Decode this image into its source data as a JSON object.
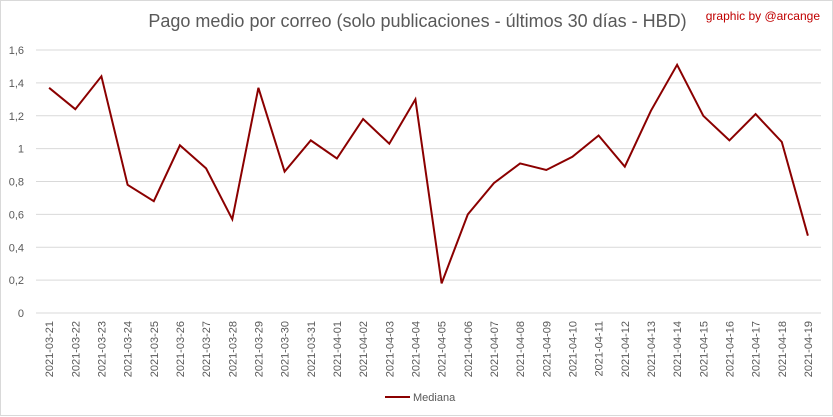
{
  "title": "Pago medio por correo (solo publicaciones - últimos 30 días - HBD)",
  "credit": "graphic by @arcange",
  "colors": {
    "series": "#8b0000",
    "grid": "#d9d9d9",
    "axis_text": "#595959",
    "credit": "#c00000"
  },
  "chart_data": {
    "type": "line",
    "title": "Pago medio por correo (solo publicaciones - últimos 30 días - HBD)",
    "xlabel": "",
    "ylabel": "",
    "ylim": [
      0,
      1.6
    ],
    "yticks": [
      "0",
      "0,2",
      "0,4",
      "0,6",
      "0,8",
      "1",
      "1,2",
      "1,4",
      "1,6"
    ],
    "grid": "horizontal",
    "legend_position": "bottom",
    "categories": [
      "2021-03-21",
      "2021-03-22",
      "2021-03-23",
      "2021-03-24",
      "2021-03-25",
      "2021-03-26",
      "2021-03-27",
      "2021-03-28",
      "2021-03-29",
      "2021-03-30",
      "2021-03-31",
      "2021-04-01",
      "2021-04-02",
      "2021-04-03",
      "2021-04-04",
      "2021-04-05",
      "2021-04-06",
      "2021-04-07",
      "2021-04-08",
      "2021-04-09",
      "2021-04-10",
      "2021-04-11",
      "2021-04-12",
      "2021-04-13",
      "2021-04-14",
      "2021-04-15",
      "2021-04-16",
      "2021-04-17",
      "2021-04-18",
      "2021-04-19"
    ],
    "series": [
      {
        "name": "Mediana",
        "color": "#8b0000",
        "values": [
          1.37,
          1.24,
          1.44,
          0.78,
          0.68,
          1.02,
          0.88,
          0.57,
          1.37,
          0.86,
          1.05,
          0.94,
          1.18,
          1.03,
          1.3,
          0.18,
          0.6,
          0.79,
          0.91,
          0.87,
          0.95,
          1.08,
          0.89,
          1.23,
          1.51,
          1.2,
          1.05,
          1.21,
          1.04,
          0.47
        ]
      }
    ]
  }
}
